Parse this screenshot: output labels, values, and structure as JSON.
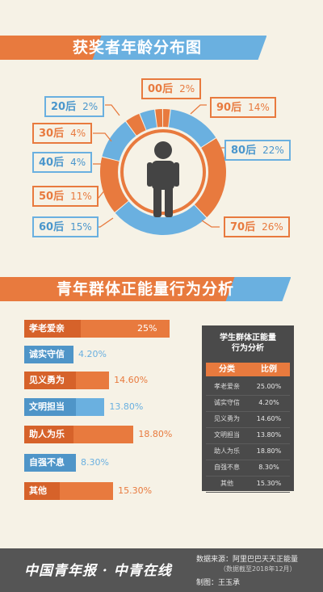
{
  "chart_data": [
    {
      "type": "pie",
      "title": "获奖者年龄分布图",
      "slices": [
        {
          "label": "00后",
          "value": 2,
          "display": "2%"
        },
        {
          "label": "90后",
          "value": 14,
          "display": "14%"
        },
        {
          "label": "80后",
          "value": 22,
          "display": "22%"
        },
        {
          "label": "70后",
          "value": 26,
          "display": "26%"
        },
        {
          "label": "60后",
          "value": 15,
          "display": "15%"
        },
        {
          "label": "50后",
          "value": 11,
          "display": "11%"
        },
        {
          "label": "40后",
          "value": 4,
          "display": "4%"
        },
        {
          "label": "30后",
          "value": 4,
          "display": "4%"
        },
        {
          "label": "20后",
          "value": 2,
          "display": "2%"
        }
      ]
    },
    {
      "type": "bar",
      "title": "青年群体正能量行为分析",
      "categories": [
        "孝老爱亲",
        "诚实守信",
        "见义勇为",
        "文明担当",
        "助人为乐",
        "自强不息",
        "其他"
      ],
      "values": [
        25,
        4.2,
        14.6,
        13.8,
        18.8,
        8.3,
        15.3
      ],
      "value_labels": [
        "25%",
        "4.20%",
        "14.60%",
        "13.80%",
        "18.80%",
        "8.30%",
        "15.30%"
      ]
    },
    {
      "type": "table",
      "title_line1": "学生群体正能量",
      "title_line2": "行为分析",
      "columns": [
        "分类",
        "比例"
      ],
      "rows": [
        [
          "孝老爱亲",
          "25.00%"
        ],
        [
          "诚实守信",
          "4.20%"
        ],
        [
          "见义勇为",
          "14.60%"
        ],
        [
          "文明担当",
          "13.80%"
        ],
        [
          "助人为乐",
          "18.80%"
        ],
        [
          "自强不息",
          "8.30%"
        ],
        [
          "其他",
          "15.30%"
        ]
      ]
    }
  ],
  "colors": {
    "orange": "#e87a3e",
    "blue": "#6ab0e0",
    "dark": "#4a4a4a",
    "background": "#f6f2e6"
  },
  "footer": {
    "logo_text": "中国青年报 · 中青在线",
    "source": "数据来源：阿里巴巴天天正能量",
    "note": "（数据截至2018年12月）",
    "credit": "制图：王玉承"
  }
}
